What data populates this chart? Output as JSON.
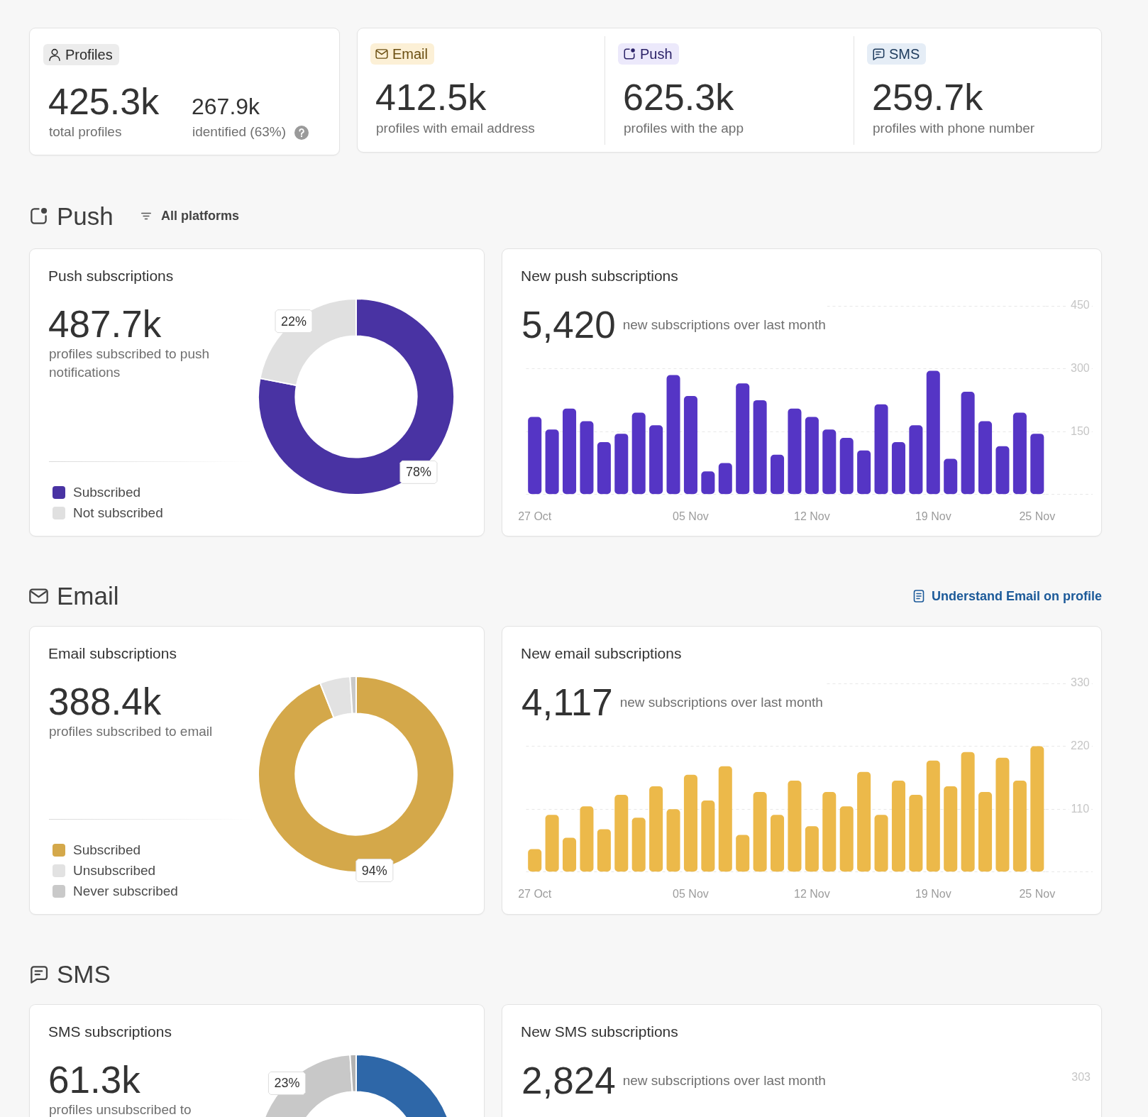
{
  "chart_data": [
    {
      "type": "other",
      "title": "Profiles",
      "annotations": [
        "425.3k",
        "total profiles",
        "267.9k",
        "identified (63%)"
      ]
    },
    {
      "type": "other",
      "title": "Email",
      "annotations": [
        "412.5k",
        "profiles with email address"
      ]
    },
    {
      "type": "other",
      "title": "Push",
      "annotations": [
        "625.3k",
        "profiles with the app"
      ]
    },
    {
      "type": "other",
      "title": "SMS",
      "annotations": [
        "259.7k",
        "profiles with phone number"
      ]
    },
    {
      "type": "other",
      "title": "Push",
      "annotations": [
        "All platforms"
      ]
    },
    {
      "type": "donut",
      "title": "Push subscriptions",
      "annotations": [
        "487.7k",
        "profiles subscribed to push notifications"
      ],
      "categories": [
        "Subscribed",
        "Not subscribed"
      ],
      "values": [
        78,
        22
      ],
      "colors": [
        "#4933a3",
        "#e0e0e0"
      ],
      "value_labels": [
        "78%",
        "22%"
      ],
      "legend": "bottom left"
    },
    {
      "type": "bar",
      "title": "New push subscriptions",
      "annotations": [
        "5,420",
        "new subscriptions over last month"
      ],
      "categories": [
        "27 Oct",
        null,
        null,
        null,
        null,
        null,
        null,
        null,
        null,
        "05 Nov",
        null,
        null,
        null,
        null,
        null,
        null,
        "12 Nov",
        null,
        null,
        null,
        null,
        null,
        null,
        "19 Nov",
        null,
        null,
        null,
        null,
        null,
        "25 Nov"
      ],
      "values": [
        185,
        155,
        205,
        175,
        125,
        145,
        195,
        165,
        285,
        235,
        55,
        75,
        265,
        225,
        95,
        205,
        185,
        155,
        135,
        105,
        215,
        125,
        165,
        295,
        85,
        245,
        175,
        115,
        195,
        145
      ],
      "color": "#5535c5",
      "ylim": [
        0,
        450
      ],
      "yticks": [
        {
          "value": 0,
          "label": null
        },
        150,
        300,
        450
      ],
      "grid": "y"
    },
    {
      "type": "other",
      "title": "Email",
      "annotations": [
        "Understand Email on profile"
      ]
    },
    {
      "type": "donut",
      "title": "Email subscriptions",
      "annotations": [
        "388.4k",
        "profiles subscribed to email"
      ],
      "categories": [
        "Subscribed",
        "Unsubscribed",
        "Never subscribed"
      ],
      "values": [
        94,
        5,
        1
      ],
      "colors": [
        "#d4a84a",
        "#e2e2e2",
        "#c9c9c9"
      ],
      "value_labels": [
        "94%",
        null,
        null
      ],
      "legend": "bottom left"
    },
    {
      "type": "bar",
      "title": "New email subscriptions",
      "annotations": [
        "4,117",
        "new subscriptions over last month"
      ],
      "categories": [
        "27 Oct",
        null,
        null,
        null,
        null,
        null,
        null,
        null,
        null,
        "05 Nov",
        null,
        null,
        null,
        null,
        null,
        null,
        "12 Nov",
        null,
        null,
        null,
        null,
        null,
        null,
        "19 Nov",
        null,
        null,
        null,
        null,
        null,
        "25 Nov"
      ],
      "values": [
        40,
        100,
        60,
        115,
        75,
        135,
        95,
        150,
        110,
        170,
        125,
        185,
        65,
        140,
        100,
        160,
        80,
        140,
        115,
        175,
        100,
        160,
        135,
        195,
        150,
        210,
        140,
        200,
        160,
        220
      ],
      "color": "#ecb94a",
      "ylim": [
        0,
        330
      ],
      "yticks": [
        {
          "value": 0,
          "label": null
        },
        110,
        220,
        330
      ],
      "grid": "y"
    },
    {
      "type": "other",
      "title": "SMS"
    },
    {
      "type": "donut",
      "title": "SMS subscriptions",
      "annotations": [
        "61.3k",
        "profiles unsubscribed to"
      ],
      "categories": [
        null,
        null,
        null
      ],
      "values": [
        76,
        23,
        1
      ],
      "colors": [
        "#2e67a8",
        "#c8c8c8",
        "#b3b3b3"
      ],
      "value_labels": [
        null,
        "23%",
        null
      ]
    },
    {
      "type": "other",
      "title": "New SMS subscriptions",
      "annotations": [
        "2,824",
        "new subscriptions over last month",
        "303"
      ]
    }
  ]
}
